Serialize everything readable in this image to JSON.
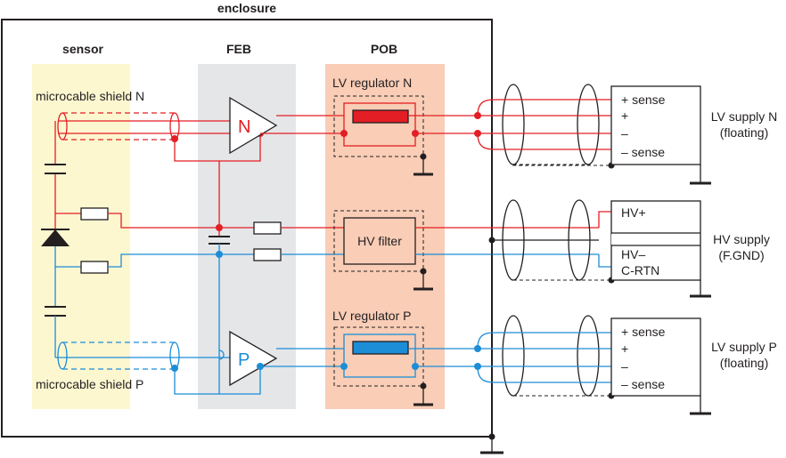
{
  "title": "enclosure",
  "regions": {
    "sensor": "sensor",
    "feb": "FEB",
    "pob": "POB"
  },
  "labels": {
    "shield_n": "microcable shield N",
    "shield_p": "microcable shield P",
    "amp_n": "N",
    "amp_p": "P",
    "lv_reg_n": "LV regulator N",
    "lv_reg_p": "LV regulator P",
    "hv_filter": "HV filter"
  },
  "supplies": {
    "lv_n": {
      "name_line1": "LV supply N",
      "name_line2": "(floating)",
      "pins": [
        "+ sense",
        "+",
        "–",
        "– sense"
      ]
    },
    "hv": {
      "name_line1": "HV supply",
      "name_line2": "(F.GND)",
      "pins": [
        "HV+",
        "HV–",
        "C-RTN"
      ]
    },
    "lv_p": {
      "name_line1": "LV supply P",
      "name_line2": "(floating)",
      "pins": [
        "+ sense",
        "+",
        "–",
        "– sense"
      ]
    }
  },
  "colors": {
    "n_side": "#e31e24",
    "p_side": "#1c8dd7",
    "sensor_bg": "#fdf7d0",
    "feb_bg": "#e5e6e8",
    "pob_bg": "#f9cdb6"
  }
}
